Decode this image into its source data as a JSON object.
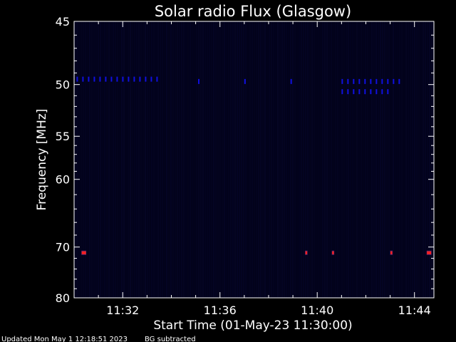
{
  "chart_data": {
    "type": "heatmap",
    "title": "Solar radio Flux (Glasgow)",
    "xlabel": "Start Time (01-May-23 11:30:00)",
    "ylabel": "Frequency [MHz]",
    "x_unit": "minutes",
    "xlim": [
      0,
      14.8
    ],
    "ylim": [
      45,
      80
    ],
    "y_scale": "reciprocal",
    "x_ticks": [
      {
        "value": 2,
        "label": "11:32"
      },
      {
        "value": 6,
        "label": "11:36"
      },
      {
        "value": 10,
        "label": "11:40"
      },
      {
        "value": 14,
        "label": "11:44"
      }
    ],
    "y_ticks": [
      {
        "value": 45,
        "label": "45"
      },
      {
        "value": 50,
        "label": "50"
      },
      {
        "value": 55,
        "label": "55"
      },
      {
        "value": 60,
        "label": "60"
      },
      {
        "value": 70,
        "label": "70"
      },
      {
        "value": 80,
        "label": "80"
      }
    ],
    "colors": {
      "background": "#000000",
      "plot_bg": "#02021a",
      "axis": "#ffffff",
      "band_50": "#1010e0",
      "band_71": "#ff2020"
    },
    "events": [
      {
        "freq": 49.5,
        "t_start": 0.1,
        "t_end": 3.5,
        "level": "medium"
      },
      {
        "freq": 49.7,
        "t_start": 5.1,
        "t_end": 5.3,
        "level": "medium"
      },
      {
        "freq": 49.7,
        "t_start": 7.0,
        "t_end": 7.2,
        "level": "medium"
      },
      {
        "freq": 49.7,
        "t_start": 8.9,
        "t_end": 9.1,
        "level": "medium"
      },
      {
        "freq": 49.7,
        "t_start": 11.0,
        "t_end": 13.5,
        "level": "medium"
      },
      {
        "freq": 50.6,
        "t_start": 11.0,
        "t_end": 13.0,
        "level": "medium"
      },
      {
        "freq": 71.0,
        "t_start": 0.3,
        "t_end": 0.5,
        "level": "high"
      },
      {
        "freq": 71.0,
        "t_start": 9.5,
        "t_end": 9.6,
        "level": "high"
      },
      {
        "freq": 71.0,
        "t_start": 10.6,
        "t_end": 10.7,
        "level": "high"
      },
      {
        "freq": 71.0,
        "t_start": 13.0,
        "t_end": 13.1,
        "level": "high"
      },
      {
        "freq": 71.0,
        "t_start": 14.5,
        "t_end": 14.7,
        "level": "high"
      }
    ]
  },
  "footer": {
    "updated": "Updated Mon May  1 12:18:51 2023",
    "bg_note": "BG subtracted"
  }
}
